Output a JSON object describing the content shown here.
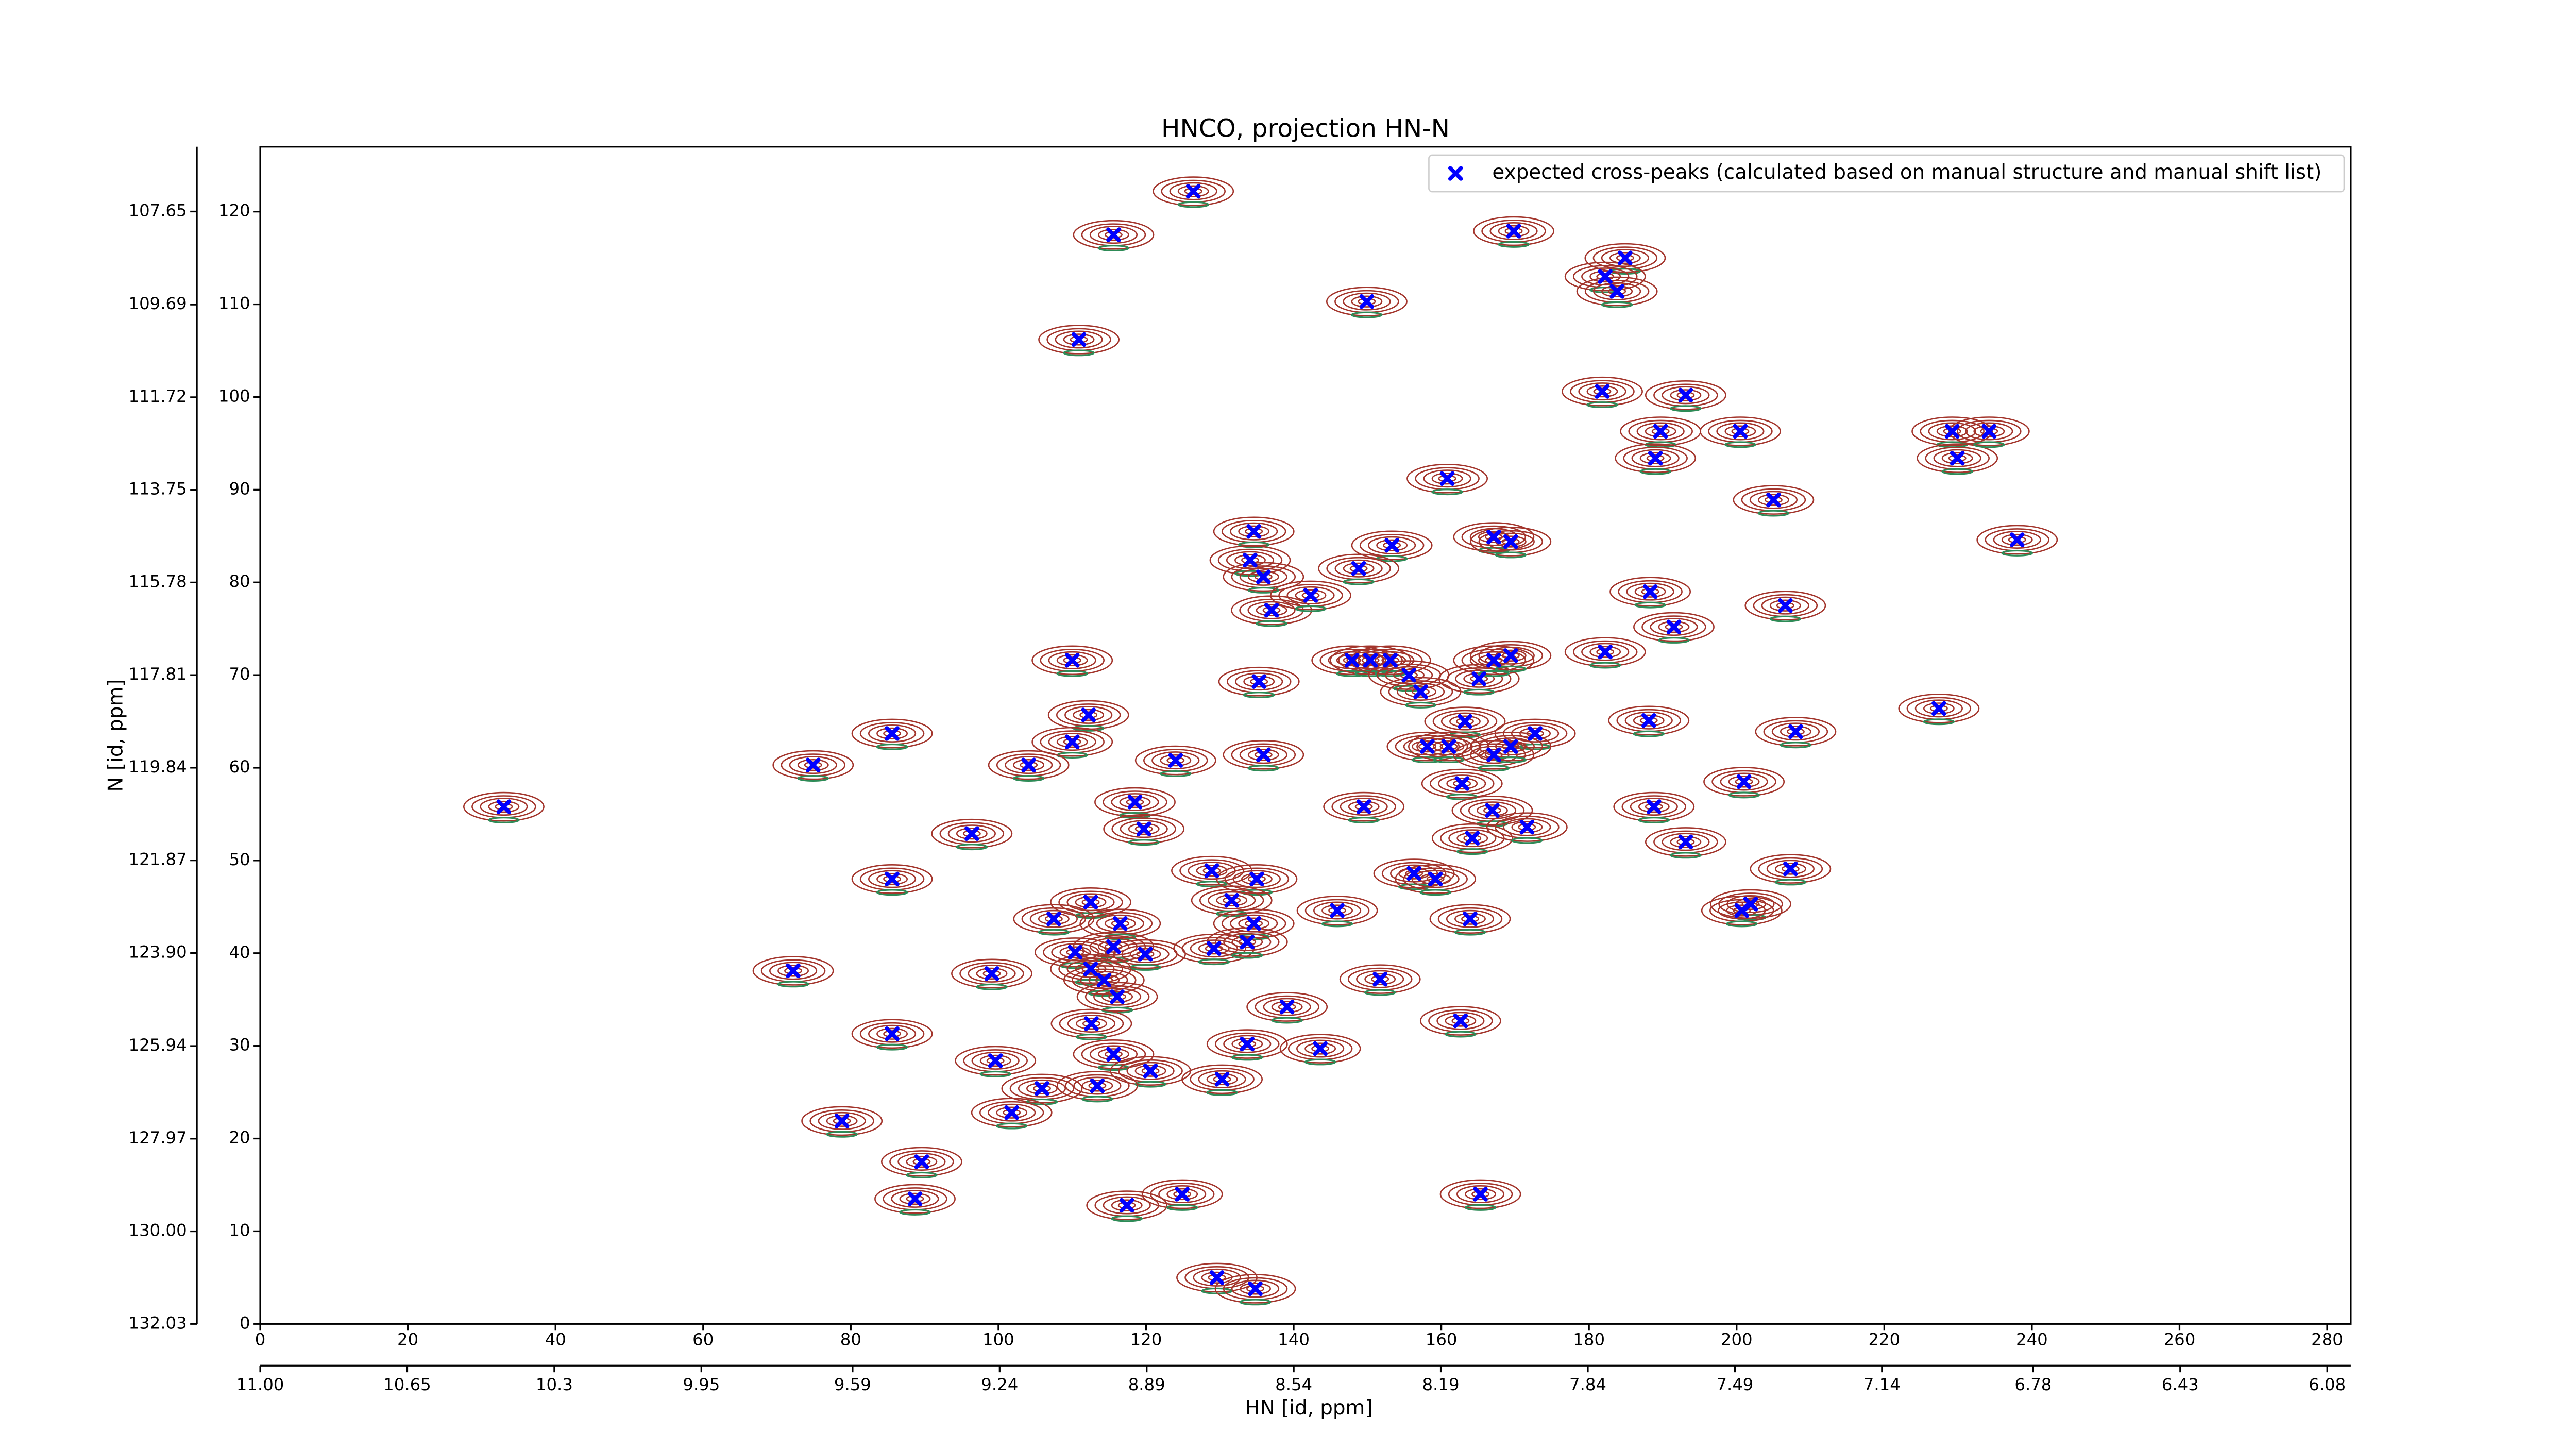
{
  "chart_data": {
    "type": "scatter",
    "title": "HNCO, projection HN-N",
    "x_label": "HN [id, ppm]",
    "y_label": "N [id, ppm]",
    "legend_corner": "upper right",
    "contour_color": "#a3352c",
    "negative_contour_color": "#2e8b57",
    "xlim": [
      0,
      283.2
    ],
    "xticks": [
      0,
      20,
      40,
      60,
      80,
      100,
      120,
      140,
      160,
      180,
      200,
      220,
      240,
      260,
      280
    ],
    "ylim": [
      0,
      127
    ],
    "yticks": [
      0,
      10,
      20,
      30,
      40,
      50,
      60,
      70,
      80,
      90,
      100,
      110,
      120
    ],
    "x2lim": [
      11.0,
      6.024
    ],
    "x2ticks": [
      {
        "value": 11.0,
        "label": "11.00"
      },
      10.65,
      10.3,
      9.95,
      9.59,
      9.24,
      8.89,
      8.54,
      8.19,
      7.84,
      7.49,
      7.14,
      6.78,
      6.43,
      6.08
    ],
    "y2lim": [
      132.03,
      106.23
    ],
    "y2ticks": [
      107.65,
      109.69,
      111.72,
      113.75,
      115.78,
      117.81,
      119.84,
      121.87,
      {
        "value": 123.9,
        "label": "123.90"
      },
      125.94,
      127.97,
      {
        "value": 130.0,
        "label": "130.00"
      },
      132.03
    ],
    "series": [
      {
        "name": "expected cross-peaks (calculated based on manual structure and manual shift list)",
        "color": "#0000ff",
        "x": [
          126.4,
          115.6,
          169.8,
          184.9,
          182.2,
          183.8,
          149.9,
          110.9,
          181.8,
          193.1,
          189.7,
          189.0,
          200.5,
          229.2,
          229.9,
          234.2,
          160.8,
          205.0,
          238.0,
          167.1,
          169.4,
          134.6,
          134.1,
          135.9,
          137.0,
          153.3,
          148.8,
          142.3,
          188.3,
          191.5,
          206.6,
          182.2,
          110.0,
          135.3,
          147.9,
          150.4,
          153.1,
          155.6,
          157.2,
          165.1,
          167.1,
          169.4,
          112.2,
          188.1,
          85.6,
          110.0,
          163.2,
          172.7,
          208.0,
          227.4,
          74.9,
          104.1,
          124.0,
          135.9,
          158.1,
          161.0,
          167.1,
          169.4,
          162.8,
          201.0,
          33.0,
          118.5,
          149.5,
          166.9,
          164.2,
          171.6,
          188.8,
          119.7,
          96.4,
          193.1,
          128.9,
          135.0,
          85.6,
          156.3,
          159.2,
          207.3,
          112.5,
          107.5,
          131.6,
          145.9,
          116.5,
          201.9,
          200.7,
          163.9,
          134.6,
          110.4,
          115.6,
          119.9,
          129.2,
          133.7,
          72.2,
          99.1,
          112.5,
          114.3,
          116.1,
          151.7,
          139.1,
          162.6,
          112.6,
          85.6,
          133.7,
          143.6,
          115.6,
          99.6,
          120.6,
          130.3,
          105.9,
          113.4,
          101.8,
          78.8,
          89.6,
          88.7,
          117.4,
          124.9,
          165.3,
          129.6,
          134.8
        ],
        "values": [
          122.2,
          117.5,
          117.9,
          115.0,
          113.0,
          111.4,
          110.3,
          106.2,
          100.6,
          100.2,
          96.3,
          93.4,
          96.3,
          96.3,
          93.4,
          96.3,
          91.2,
          88.9,
          84.6,
          84.9,
          84.4,
          85.5,
          82.4,
          80.6,
          77.0,
          84.0,
          81.5,
          78.6,
          79.0,
          75.2,
          77.5,
          72.5,
          71.6,
          69.3,
          71.6,
          71.6,
          71.6,
          70.0,
          68.2,
          69.6,
          71.6,
          72.1,
          65.7,
          65.1,
          63.7,
          62.8,
          65.0,
          63.7,
          63.9,
          66.4,
          60.3,
          60.3,
          60.8,
          61.4,
          62.3,
          62.3,
          61.4,
          62.3,
          58.3,
          58.5,
          55.8,
          56.3,
          55.8,
          55.4,
          52.4,
          53.6,
          55.8,
          53.4,
          52.9,
          52.0,
          48.9,
          48.0,
          48.0,
          48.6,
          48.0,
          49.1,
          45.5,
          43.7,
          45.7,
          44.6,
          43.2,
          45.3,
          44.6,
          43.7,
          43.2,
          40.1,
          40.7,
          39.9,
          40.5,
          41.2,
          38.1,
          37.8,
          38.3,
          37.1,
          35.3,
          37.2,
          34.2,
          32.7,
          32.4,
          31.3,
          30.2,
          29.7,
          29.1,
          28.4,
          27.3,
          26.4,
          25.4,
          25.7,
          22.8,
          21.9,
          17.5,
          13.5,
          12.8,
          14.0,
          14.0,
          5.0,
          3.8
        ]
      }
    ]
  }
}
